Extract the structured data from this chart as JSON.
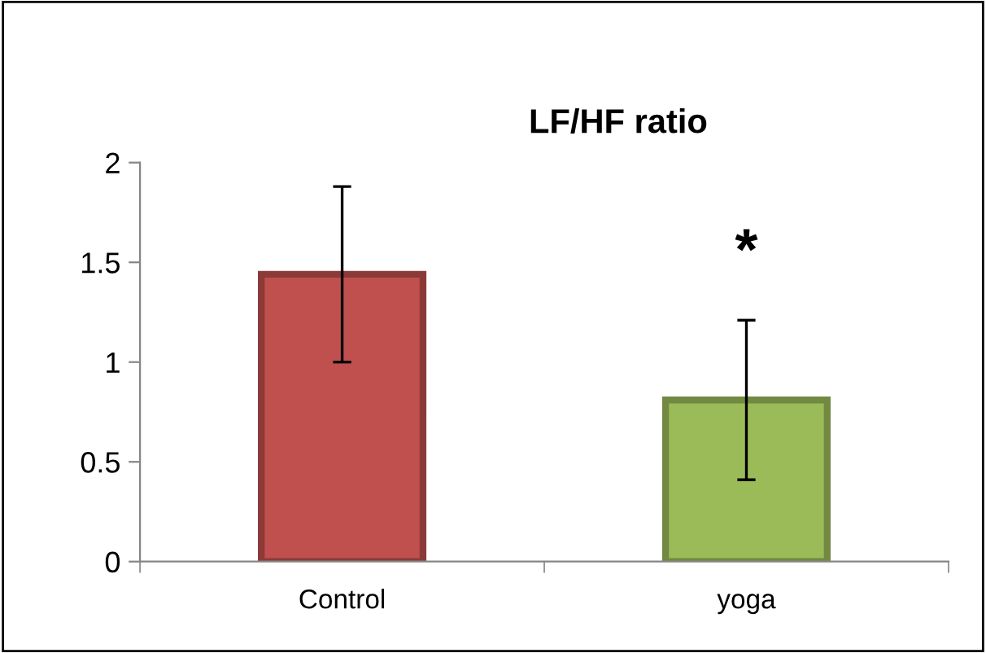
{
  "chart_data": {
    "type": "bar",
    "title": "LF/HF ratio",
    "categories": [
      "Control",
      "yoga"
    ],
    "values": [
      1.44,
      0.81
    ],
    "colors": [
      "#c0504d",
      "#9bbb59"
    ],
    "errors": [
      0.44,
      0.4
    ],
    "ylim": [
      0,
      2
    ],
    "yticks": [
      0,
      0.5,
      1,
      1.5,
      2
    ],
    "grid": false,
    "legend": false,
    "annotations": [
      "*"
    ]
  }
}
